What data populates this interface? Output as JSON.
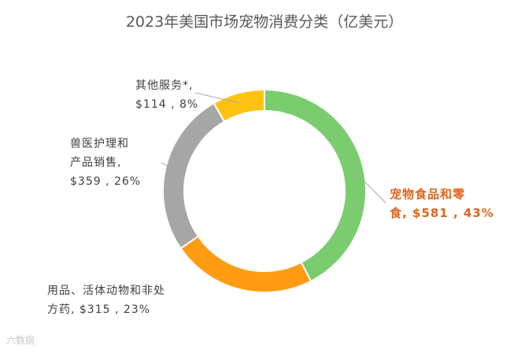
{
  "chart_data": {
    "type": "pie",
    "variant": "doughnut",
    "title": "2023年美国市场宠物消费分类（亿美元）",
    "unit": "亿美元",
    "slices": [
      {
        "name": "宠物食品和零食",
        "value": 581,
        "percent": "43%",
        "color": "#7acc6e",
        "label_lines": [
          "宠物食品和零",
          "食, $581 , 43%"
        ]
      },
      {
        "name": "用品、活体动物和非处方药",
        "value": 315,
        "percent": "23%",
        "color": "#ff9c12",
        "label_lines": [
          "用品、活体动物和非处",
          "方药, $315 , 23%"
        ]
      },
      {
        "name": "兽医护理和产品销售",
        "value": 359,
        "percent": "26%",
        "color": "#a6a6a6",
        "label_lines": [
          "兽医护理和",
          "产品销售,",
          "$359 , 26%"
        ]
      },
      {
        "name": "其他服务*",
        "value": 114,
        "percent": "8%",
        "color": "#ffc20e",
        "label_lines": [
          "其他服务*,",
          "$114 , 8%"
        ]
      }
    ]
  },
  "watermark": "六数据"
}
